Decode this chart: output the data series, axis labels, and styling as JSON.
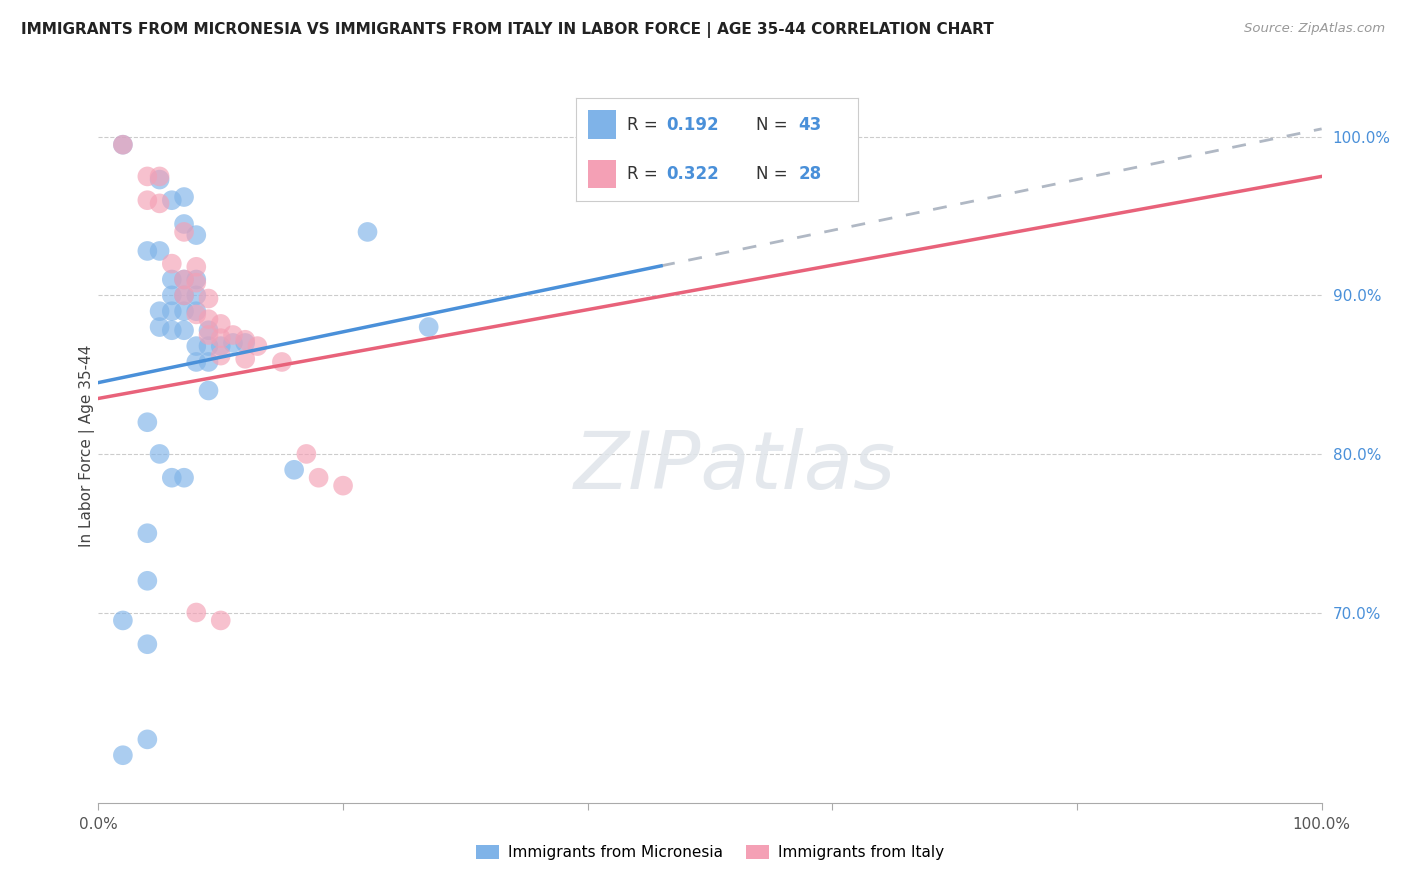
{
  "title": "IMMIGRANTS FROM MICRONESIA VS IMMIGRANTS FROM ITALY IN LABOR FORCE | AGE 35-44 CORRELATION CHART",
  "source": "Source: ZipAtlas.com",
  "ylabel": "In Labor Force | Age 35-44",
  "legend_micronesia": "Immigrants from Micronesia",
  "legend_italy": "Immigrants from Italy",
  "R_micronesia": 0.192,
  "N_micronesia": 43,
  "R_italy": 0.322,
  "N_italy": 28,
  "xlim": [
    0.0,
    1.0
  ],
  "ylim": [
    0.58,
    1.03
  ],
  "color_micronesia": "#7fb3e8",
  "color_italy": "#f4a0b5",
  "line_color_micronesia": "#4a90d9",
  "line_color_italy": "#e8627a",
  "line_color_dashed": "#b0b8c4",
  "background_color": "#ffffff",
  "y_tick_positions": [
    0.7,
    0.8,
    0.9,
    1.0
  ],
  "y_tick_labels": [
    "70.0%",
    "80.0%",
    "90.0%",
    "100.0%"
  ],
  "line_mic_x0": 0.0,
  "line_mic_y0": 0.845,
  "line_mic_x1": 1.0,
  "line_mic_y1": 1.005,
  "line_italy_x0": 0.0,
  "line_italy_y0": 0.835,
  "line_italy_x1": 1.0,
  "line_italy_y1": 0.975,
  "line_solid_end": 0.46,
  "scatter_micronesia": [
    [
      0.02,
      0.995
    ],
    [
      0.05,
      0.973
    ],
    [
      0.06,
      0.96
    ],
    [
      0.07,
      0.945
    ],
    [
      0.07,
      0.962
    ],
    [
      0.08,
      0.938
    ],
    [
      0.04,
      0.928
    ],
    [
      0.05,
      0.928
    ],
    [
      0.06,
      0.91
    ],
    [
      0.07,
      0.91
    ],
    [
      0.08,
      0.91
    ],
    [
      0.06,
      0.9
    ],
    [
      0.07,
      0.9
    ],
    [
      0.08,
      0.9
    ],
    [
      0.05,
      0.89
    ],
    [
      0.06,
      0.89
    ],
    [
      0.07,
      0.89
    ],
    [
      0.08,
      0.89
    ],
    [
      0.05,
      0.88
    ],
    [
      0.06,
      0.878
    ],
    [
      0.07,
      0.878
    ],
    [
      0.09,
      0.878
    ],
    [
      0.08,
      0.868
    ],
    [
      0.09,
      0.868
    ],
    [
      0.1,
      0.868
    ],
    [
      0.08,
      0.858
    ],
    [
      0.09,
      0.858
    ],
    [
      0.11,
      0.87
    ],
    [
      0.12,
      0.87
    ],
    [
      0.09,
      0.84
    ],
    [
      0.04,
      0.82
    ],
    [
      0.05,
      0.8
    ],
    [
      0.06,
      0.785
    ],
    [
      0.07,
      0.785
    ],
    [
      0.16,
      0.79
    ],
    [
      0.22,
      0.94
    ],
    [
      0.27,
      0.88
    ],
    [
      0.04,
      0.75
    ],
    [
      0.04,
      0.72
    ],
    [
      0.02,
      0.695
    ],
    [
      0.04,
      0.68
    ],
    [
      0.04,
      0.62
    ],
    [
      0.02,
      0.61
    ]
  ],
  "scatter_italy": [
    [
      0.02,
      0.995
    ],
    [
      0.04,
      0.975
    ],
    [
      0.04,
      0.96
    ],
    [
      0.05,
      0.975
    ],
    [
      0.05,
      0.958
    ],
    [
      0.07,
      0.94
    ],
    [
      0.06,
      0.92
    ],
    [
      0.08,
      0.918
    ],
    [
      0.07,
      0.91
    ],
    [
      0.08,
      0.908
    ],
    [
      0.07,
      0.9
    ],
    [
      0.09,
      0.898
    ],
    [
      0.08,
      0.888
    ],
    [
      0.09,
      0.885
    ],
    [
      0.1,
      0.882
    ],
    [
      0.09,
      0.875
    ],
    [
      0.1,
      0.873
    ],
    [
      0.1,
      0.862
    ],
    [
      0.11,
      0.875
    ],
    [
      0.12,
      0.872
    ],
    [
      0.12,
      0.86
    ],
    [
      0.13,
      0.868
    ],
    [
      0.15,
      0.858
    ],
    [
      0.17,
      0.8
    ],
    [
      0.18,
      0.785
    ],
    [
      0.2,
      0.78
    ],
    [
      0.08,
      0.7
    ],
    [
      0.1,
      0.695
    ]
  ]
}
